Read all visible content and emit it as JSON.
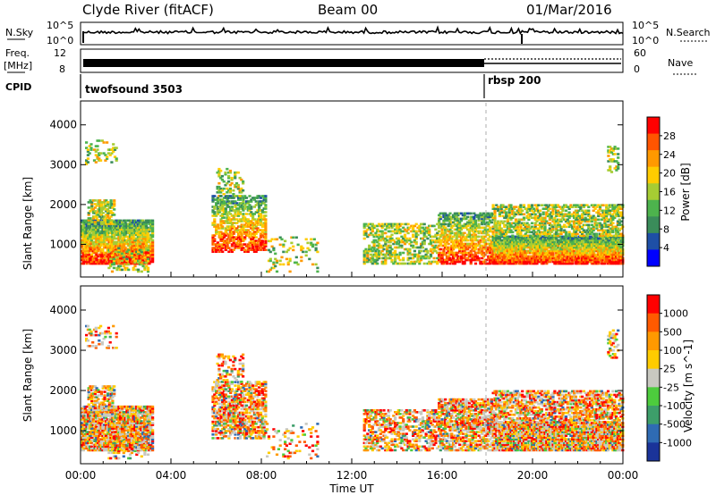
{
  "header": {
    "title": "Clyde River (fitACF)",
    "beam": "Beam 00",
    "date": "01/Mar/2016"
  },
  "strip_nsky": {
    "left_label": "N.Sky",
    "left_ticks": [
      "10^5",
      "10^0"
    ],
    "right_ticks": [
      "10^5",
      "10^0"
    ],
    "right_label": "N.Search"
  },
  "strip_freq": {
    "left_label": "Freq.",
    "left_unit": "[MHz]",
    "left_ticks": [
      "12",
      "8"
    ],
    "right_ticks": [
      "60",
      "0"
    ],
    "right_label": "Nave"
  },
  "strip_cpid": {
    "label": "CPID",
    "programs": [
      {
        "name": "twofsound 3503",
        "start_hour": 0
      },
      {
        "name": "rbsp 200",
        "start_hour": 18
      }
    ]
  },
  "chart_data": [
    {
      "type": "heatmap",
      "name": "power",
      "ylabel": "Slant Range [km]",
      "yticks": [
        "4000",
        "3000",
        "2000",
        "1000"
      ],
      "ylim": [
        180,
        4600
      ],
      "colorbar_label": "Power [dB]",
      "colorbar_ticks": [
        "28",
        "24",
        "20",
        "16",
        "12",
        "8",
        "4"
      ],
      "colors": [
        "#0000ff",
        "#1e4fa6",
        "#3a8c5a",
        "#4db34d",
        "#a6cc33",
        "#ffcc00",
        "#ff9900",
        "#ff5500",
        "#ff0000"
      ]
    },
    {
      "type": "heatmap",
      "name": "velocity",
      "ylabel": "Slant Range [km]",
      "yticks": [
        "4000",
        "3000",
        "2000",
        "1000"
      ],
      "ylim": [
        180,
        4600
      ],
      "colorbar_label": "Velocity [m s^-1]",
      "colorbar_ticks": [
        "1000",
        "500",
        "100",
        "25",
        "-25",
        "-100",
        "-500",
        "-1000"
      ],
      "colors": [
        "#1a3399",
        "#2f6bb3",
        "#3d9e6a",
        "#4dcc3d",
        "#c8c8c0",
        "#ffcc00",
        "#ff9900",
        "#ff5a00",
        "#ff0000"
      ]
    }
  ],
  "xaxis": {
    "label": "Time UT",
    "ticks": [
      "00:00",
      "04:00",
      "08:00",
      "12:00",
      "16:00",
      "20:00",
      "00:00"
    ]
  }
}
